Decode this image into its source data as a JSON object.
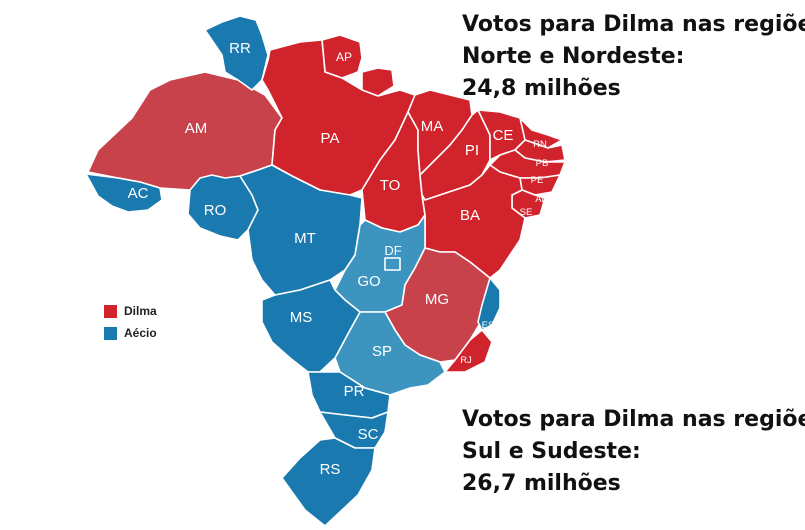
{
  "colors": {
    "dilma": "#d0232c",
    "dilma_alt": "#c8424b",
    "aecio": "#1a7ab0",
    "aecio_alt": "#3d94bf"
  },
  "states": [
    {
      "id": "AM",
      "winner": "dilma"
    },
    {
      "id": "RR",
      "winner": "aecio"
    },
    {
      "id": "AP",
      "winner": "dilma"
    },
    {
      "id": "PA",
      "winner": "dilma"
    },
    {
      "id": "AC",
      "winner": "aecio"
    },
    {
      "id": "RO",
      "winner": "aecio"
    },
    {
      "id": "MT",
      "winner": "aecio"
    },
    {
      "id": "TO",
      "winner": "dilma"
    },
    {
      "id": "MA",
      "winner": "dilma"
    },
    {
      "id": "PI",
      "winner": "dilma"
    },
    {
      "id": "CE",
      "winner": "dilma"
    },
    {
      "id": "RN",
      "winner": "dilma"
    },
    {
      "id": "PB",
      "winner": "dilma"
    },
    {
      "id": "PE",
      "winner": "dilma"
    },
    {
      "id": "AL",
      "winner": "dilma"
    },
    {
      "id": "SE",
      "winner": "dilma"
    },
    {
      "id": "BA",
      "winner": "dilma"
    },
    {
      "id": "DF",
      "winner": "aecio"
    },
    {
      "id": "GO",
      "winner": "aecio"
    },
    {
      "id": "MG",
      "winner": "dilma"
    },
    {
      "id": "ES",
      "winner": "aecio"
    },
    {
      "id": "RJ",
      "winner": "dilma"
    },
    {
      "id": "SP",
      "winner": "aecio"
    },
    {
      "id": "MS",
      "winner": "aecio"
    },
    {
      "id": "PR",
      "winner": "aecio"
    },
    {
      "id": "SC",
      "winner": "aecio"
    },
    {
      "id": "RS",
      "winner": "aecio"
    }
  ],
  "legend": {
    "dilma": "Dilma",
    "aecio": "Aécio"
  },
  "captions": {
    "north_northeast": {
      "line1": "Votos para Dilma nas regiões",
      "line2": "Norte e Nordeste:",
      "line3": "24,8 milhões"
    },
    "south_southeast": {
      "line1": "Votos para Dilma nas regiões",
      "line2": "Sul e Sudeste:",
      "line3": "26,7 milhões"
    }
  }
}
